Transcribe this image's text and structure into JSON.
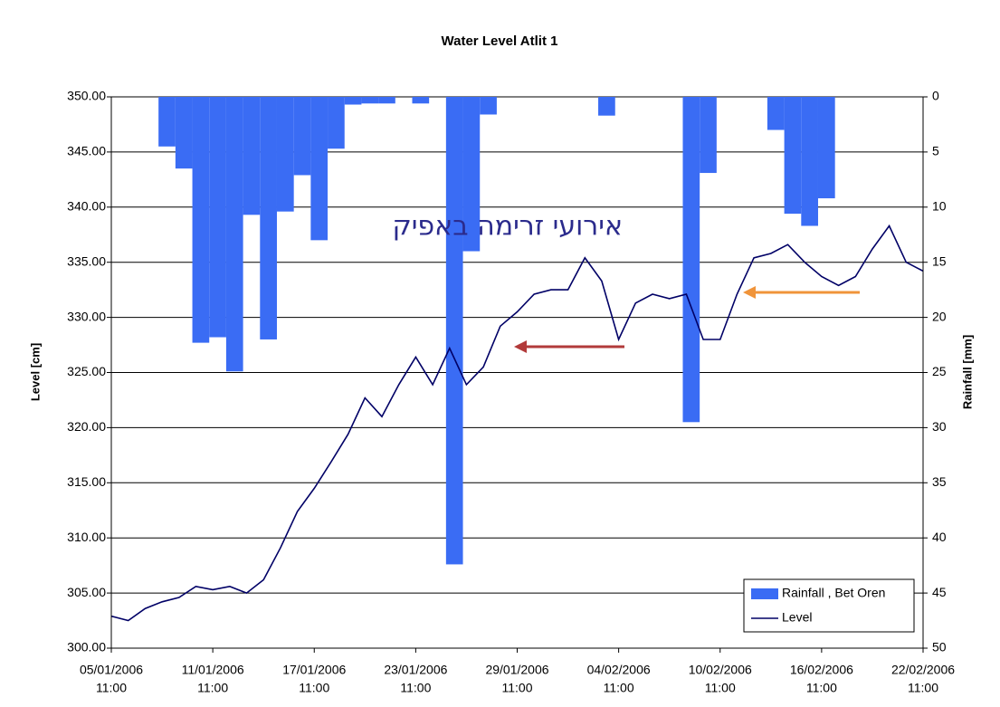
{
  "chart_data": {
    "type": "bar+line",
    "title": "Water Level Atlit 1",
    "y_label": "Level [cm]",
    "y2_label": "Rainfall [mm]",
    "annotation": "אירועי זרימה באפיק",
    "xlim": [
      "2006-01-05T11:00",
      "2006-02-22T11:00"
    ],
    "xticks": [
      {
        "value": "2006-01-05T11:00",
        "label": [
          "05/01/2006",
          "11:00"
        ]
      },
      {
        "value": "2006-01-11T11:00",
        "label": [
          "11/01/2006",
          "11:00"
        ]
      },
      {
        "value": "2006-01-17T11:00",
        "label": [
          "17/01/2006",
          "11:00"
        ]
      },
      {
        "value": "2006-01-23T11:00",
        "label": [
          "23/01/2006",
          "11:00"
        ]
      },
      {
        "value": "2006-01-29T11:00",
        "label": [
          "29/01/2006",
          "11:00"
        ]
      },
      {
        "value": "2006-02-04T11:00",
        "label": [
          "04/02/2006",
          "11:00"
        ]
      },
      {
        "value": "2006-02-10T11:00",
        "label": [
          "10/02/2006",
          "11:00"
        ]
      },
      {
        "value": "2006-02-16T11:00",
        "label": [
          "16/02/2006",
          "11:00"
        ]
      },
      {
        "value": "2006-02-22T11:00",
        "label": [
          "22/02/2006",
          "11:00"
        ]
      }
    ],
    "ylim": [
      300,
      350
    ],
    "yticks": [
      {
        "value": 300,
        "label": "300.00"
      },
      {
        "value": 305,
        "label": "305.00"
      },
      {
        "value": 310,
        "label": "310.00"
      },
      {
        "value": 315,
        "label": "315.00"
      },
      {
        "value": 320,
        "label": "320.00"
      },
      {
        "value": 325,
        "label": "325.00"
      },
      {
        "value": 330,
        "label": "330.00"
      },
      {
        "value": 335,
        "label": "335.00"
      },
      {
        "value": 340,
        "label": "340.00"
      },
      {
        "value": 345,
        "label": "345.00"
      },
      {
        "value": 350,
        "label": "350.00"
      }
    ],
    "y2lim": [
      0,
      50
    ],
    "y2ticks": [
      0,
      5,
      10,
      15,
      20,
      25,
      30,
      35,
      40,
      45,
      50
    ],
    "y2_inverted": true,
    "grid": true,
    "legend": "bottom-right",
    "series": [
      {
        "name": "Rainfall , Bet Oren",
        "type": "bar",
        "axis": "y2",
        "color": "#3a6cf4",
        "x": [
          "2006-01-08",
          "2006-01-09",
          "2006-01-10",
          "2006-01-11",
          "2006-01-12",
          "2006-01-13",
          "2006-01-14",
          "2006-01-15",
          "2006-01-16",
          "2006-01-17",
          "2006-01-18",
          "2006-01-19",
          "2006-01-20",
          "2006-01-21",
          "2006-01-23",
          "2006-01-25",
          "2006-01-26",
          "2006-01-27",
          "2006-02-03",
          "2006-02-08",
          "2006-02-09",
          "2006-02-13",
          "2006-02-14",
          "2006-02-15",
          "2006-02-16"
        ],
        "values": [
          4.5,
          6.5,
          22.3,
          21.8,
          24.9,
          10.7,
          22,
          10.4,
          7.1,
          13,
          4.7,
          0.7,
          0.6,
          0.6,
          0.6,
          42.4,
          14,
          1.6,
          1.7,
          29.5,
          6.9,
          3,
          10.6,
          11.7,
          9.2
        ]
      },
      {
        "name": "Level",
        "type": "line",
        "color": "#000066",
        "x": [
          "2006-01-05T11:00",
          "2006-01-06T11:00",
          "2006-01-07T11:00",
          "2006-01-08T11:00",
          "2006-01-09T11:00",
          "2006-01-10T11:00",
          "2006-01-11T11:00",
          "2006-01-12T11:00",
          "2006-01-13T11:00",
          "2006-01-14T11:00",
          "2006-01-15T11:00",
          "2006-01-16T11:00",
          "2006-01-17T11:00",
          "2006-01-18T11:00",
          "2006-01-19T11:00",
          "2006-01-20T11:00",
          "2006-01-21T11:00",
          "2006-01-22T11:00",
          "2006-01-23T11:00",
          "2006-01-24T11:00",
          "2006-01-25T11:00",
          "2006-01-26T11:00",
          "2006-01-27T11:00",
          "2006-01-28T11:00",
          "2006-01-29T11:00",
          "2006-01-30T11:00",
          "2006-01-31T11:00",
          "2006-02-01T11:00",
          "2006-02-02T11:00",
          "2006-02-03T11:00",
          "2006-02-04T11:00",
          "2006-02-05T11:00",
          "2006-02-06T11:00",
          "2006-02-07T11:00",
          "2006-02-08T11:00",
          "2006-02-09T11:00",
          "2006-02-10T11:00",
          "2006-02-11T11:00",
          "2006-02-12T11:00",
          "2006-02-13T11:00",
          "2006-02-14T11:00",
          "2006-02-15T11:00",
          "2006-02-16T11:00",
          "2006-02-17T11:00",
          "2006-02-18T11:00",
          "2006-02-19T11:00",
          "2006-02-20T11:00",
          "2006-02-21T11:00",
          "2006-02-22T11:00"
        ],
        "values": [
          302.9,
          302.5,
          303.6,
          304.2,
          304.6,
          305.6,
          305.3,
          305.6,
          305,
          306.2,
          309.1,
          312.4,
          314.5,
          316.9,
          319.4,
          322.7,
          321,
          323.9,
          326.4,
          323.9,
          327.2,
          323.9,
          325.5,
          329.2,
          330.5,
          332.1,
          332.5,
          332.5,
          335.4,
          333.3,
          328,
          331.3,
          332.1,
          331.7,
          332.1,
          328,
          328,
          332.1,
          335.4,
          335.8,
          336.6,
          335,
          333.7,
          332.9,
          333.7,
          336.2,
          338.3,
          335,
          334.2
        ]
      }
    ]
  }
}
